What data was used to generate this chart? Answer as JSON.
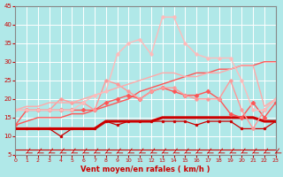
{
  "xlabel": "Vent moyen/en rafales ( km/h )",
  "bg_color": "#b0e8e8",
  "grid_color": "#a0d8d8",
  "x_ticks": [
    0,
    1,
    2,
    3,
    4,
    5,
    6,
    7,
    8,
    9,
    10,
    11,
    12,
    13,
    14,
    15,
    16,
    17,
    18,
    19,
    20,
    21,
    22,
    23
  ],
  "ylim": [
    5,
    45
  ],
  "xlim": [
    0,
    23
  ],
  "yticks": [
    5,
    10,
    15,
    20,
    25,
    30,
    35,
    40,
    45
  ],
  "lines": [
    {
      "color": "#cc0000",
      "linewidth": 2.2,
      "marker": null,
      "markersize": 0,
      "y": [
        12,
        12,
        12,
        12,
        12,
        12,
        12,
        12,
        14,
        14,
        14,
        14,
        14,
        15,
        15,
        15,
        15,
        15,
        15,
        15,
        15,
        15,
        14,
        14
      ]
    },
    {
      "color": "#cc0000",
      "linewidth": 0.9,
      "marker": "o",
      "markersize": 2.0,
      "y": [
        12,
        12,
        12,
        12,
        10,
        12,
        12,
        12,
        14,
        13,
        14,
        14,
        14,
        14,
        14,
        14,
        13,
        14,
        14,
        14,
        12,
        12,
        12,
        14
      ]
    },
    {
      "color": "#ff5555",
      "linewidth": 1.0,
      "marker": null,
      "markersize": 0,
      "y": [
        13,
        14,
        15,
        15,
        15,
        16,
        16,
        17,
        18,
        19,
        20,
        22,
        23,
        24,
        25,
        26,
        27,
        27,
        28,
        28,
        29,
        29,
        30,
        30
      ]
    },
    {
      "color": "#ff5555",
      "linewidth": 1.0,
      "marker": "D",
      "markersize": 2.5,
      "y": [
        13,
        17,
        17,
        17,
        17,
        17,
        17,
        17,
        19,
        20,
        21,
        20,
        22,
        23,
        22,
        21,
        21,
        22,
        20,
        16,
        15,
        19,
        15,
        19
      ]
    },
    {
      "color": "#ff9999",
      "linewidth": 1.0,
      "marker": "o",
      "markersize": 2.5,
      "y": [
        17,
        17,
        17,
        17,
        20,
        19,
        19,
        17,
        25,
        24,
        22,
        20,
        22,
        23,
        23,
        21,
        20,
        20,
        20,
        25,
        17,
        12,
        17,
        20
      ]
    },
    {
      "color": "#ffaaaa",
      "linewidth": 1.0,
      "marker": null,
      "markersize": 0,
      "y": [
        17,
        18,
        18,
        19,
        19,
        19,
        20,
        21,
        22,
        23,
        24,
        25,
        26,
        27,
        27,
        26,
        26,
        27,
        27,
        28,
        29,
        29,
        18,
        20
      ]
    },
    {
      "color": "#ffbbbb",
      "linewidth": 1.0,
      "marker": "o",
      "markersize": 2.5,
      "y": [
        17,
        17,
        17,
        17,
        17,
        17,
        19,
        21,
        22,
        32,
        35,
        36,
        32,
        42,
        42,
        35,
        32,
        31,
        31,
        31,
        25,
        17,
        17,
        20
      ]
    }
  ],
  "arrow_color": "#cc0000",
  "xlabel_color": "#cc0000",
  "tick_color": "#cc0000",
  "axis_color": "#888888"
}
